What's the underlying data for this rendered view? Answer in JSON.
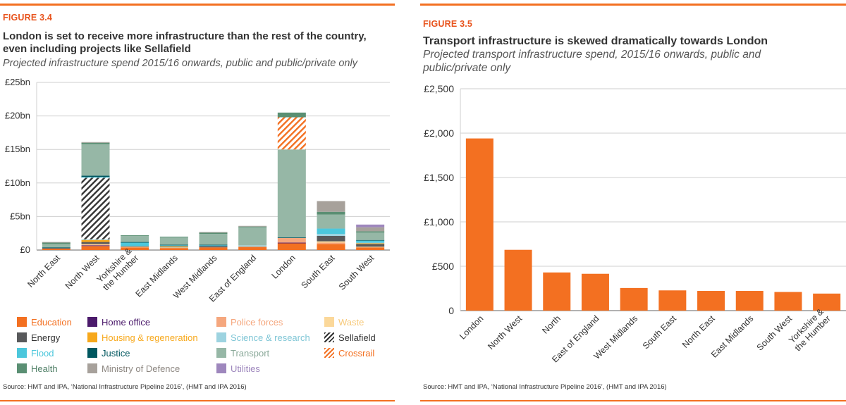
{
  "left": {
    "figure_label": "FIGURE 3.4",
    "title_line1": "London is set to receive more infrastructure than the rest of the country,",
    "title_line2": "even including projects like Sellafield",
    "subtitle": "Projected infrastructure spend 2015/16 onwards, public and public/private only",
    "source": "Source: HMT and IPA, ‘National Infrastructure Pipeline 2016’, (HMT and IPA 2016)"
  },
  "right": {
    "figure_label": "FIGURE 3.5",
    "title": "Transport infrastructure is skewed dramatically towards London",
    "subtitle_line1": "Projected transport infrastructure spend, 2015/16 onwards, public and",
    "subtitle_line2": "public/private only",
    "source": "Source: HMT and IPA, ‘National Infrastructure Pipeline 2016’, (HMT and IPA 2016)"
  },
  "chart_data": [
    {
      "type": "bar",
      "stacked": true,
      "title": "London is set to receive more infrastructure than the rest of the country, even including projects like Sellafield",
      "subtitle": "Projected infrastructure spend 2015/16 onwards, public and public/private only",
      "categories": [
        "North East",
        "North West",
        "Yorkshire & the Humber",
        "East Midlands",
        "West Midlands",
        "East of England",
        "London",
        "South East",
        "South West"
      ],
      "yticks": [
        "£0",
        "£5bn",
        "£10bn",
        "£15bn",
        "£20bn",
        "£25bn"
      ],
      "ylim": [
        0,
        25
      ],
      "unit": "£bn",
      "grid": true,
      "legend_position": "bottom",
      "series": [
        {
          "name": "Education",
          "color": "#f37021",
          "pattern": false,
          "values": [
            0.2,
            0.6,
            0.4,
            0.3,
            0.4,
            0.5,
            1.0,
            0.9,
            0.4
          ]
        },
        {
          "name": "Home office",
          "color": "#4b1a6b",
          "pattern": false,
          "values": [
            0.0,
            0.1,
            0.0,
            0.0,
            0.0,
            0.0,
            0.1,
            0.0,
            0.0
          ]
        },
        {
          "name": "Police forces",
          "color": "#f5a77e",
          "pattern": false,
          "values": [
            0.0,
            0.1,
            0.0,
            0.0,
            0.0,
            0.0,
            0.7,
            0.2,
            0.0
          ]
        },
        {
          "name": "Waste",
          "color": "#fbd89a",
          "pattern": false,
          "values": [
            0.0,
            0.1,
            0.1,
            0.1,
            0.0,
            0.0,
            0.0,
            0.2,
            0.1
          ]
        },
        {
          "name": "Energy",
          "color": "#58595b",
          "pattern": false,
          "values": [
            0.1,
            0.3,
            0.1,
            0.1,
            0.2,
            0.0,
            0.0,
            0.8,
            0.4
          ]
        },
        {
          "name": "Housing & regeneration",
          "color": "#f7a81b",
          "pattern": false,
          "values": [
            0.0,
            0.3,
            0.0,
            0.1,
            0.0,
            0.0,
            0.0,
            0.0,
            0.1
          ]
        },
        {
          "name": "Science & research",
          "color": "#9dd3e0",
          "pattern": false,
          "values": [
            0.0,
            0.1,
            0.0,
            0.0,
            0.0,
            0.2,
            0.0,
            0.3,
            0.1
          ]
        },
        {
          "name": "Sellafield",
          "color": "#333333",
          "pattern": true,
          "values": [
            0.0,
            9.2,
            0.0,
            0.0,
            0.0,
            0.0,
            0.0,
            0.0,
            0.0
          ]
        },
        {
          "name": "Flood",
          "color": "#4cc7dc",
          "pattern": false,
          "values": [
            0.0,
            0.1,
            0.5,
            0.1,
            0.1,
            0.0,
            0.0,
            0.8,
            0.3
          ]
        },
        {
          "name": "Justice",
          "color": "#00575f",
          "pattern": false,
          "values": [
            0.1,
            0.2,
            0.1,
            0.1,
            0.1,
            0.0,
            0.1,
            0.0,
            0.1
          ]
        },
        {
          "name": "Transport",
          "color": "#96b7a6",
          "pattern": false,
          "values": [
            0.5,
            4.7,
            0.9,
            1.1,
            1.6,
            2.7,
            13.1,
            2.1,
            1.1
          ]
        },
        {
          "name": "Crossrail",
          "color": "#f37021",
          "pattern": true,
          "values": [
            0.0,
            0.0,
            0.0,
            0.0,
            0.0,
            0.0,
            4.8,
            0.0,
            0.0
          ]
        },
        {
          "name": "Health",
          "color": "#5a8f73",
          "pattern": false,
          "values": [
            0.2,
            0.2,
            0.1,
            0.1,
            0.2,
            0.1,
            0.7,
            0.4,
            0.2
          ]
        },
        {
          "name": "Ministry of Defence",
          "color": "#a7a19b",
          "pattern": false,
          "values": [
            0.1,
            0.1,
            0.0,
            0.0,
            0.1,
            0.1,
            0.0,
            1.6,
            0.6
          ]
        },
        {
          "name": "Utilities",
          "color": "#9e87bd",
          "pattern": false,
          "values": [
            0.0,
            0.0,
            0.0,
            0.0,
            0.0,
            0.0,
            0.0,
            0.0,
            0.4
          ]
        }
      ]
    },
    {
      "type": "bar",
      "title": "Transport infrastructure is skewed dramatically towards London",
      "subtitle": "Projected transport infrastructure spend, 2015/16 onwards, public and public/private only",
      "categories": [
        "London",
        "North West",
        "North",
        "East of England",
        "West Midlands",
        "South East",
        "North East",
        "East Midlands",
        "South West",
        "Yorkshire & the Humber"
      ],
      "values": [
        1940,
        685,
        430,
        415,
        255,
        228,
        222,
        222,
        210,
        192
      ],
      "yticks": [
        "0",
        "£500",
        "£1,000",
        "£1,500",
        "£2,000",
        "£2,500"
      ],
      "ylim": [
        0,
        2500
      ],
      "grid": true,
      "color": "#f37021"
    }
  ]
}
